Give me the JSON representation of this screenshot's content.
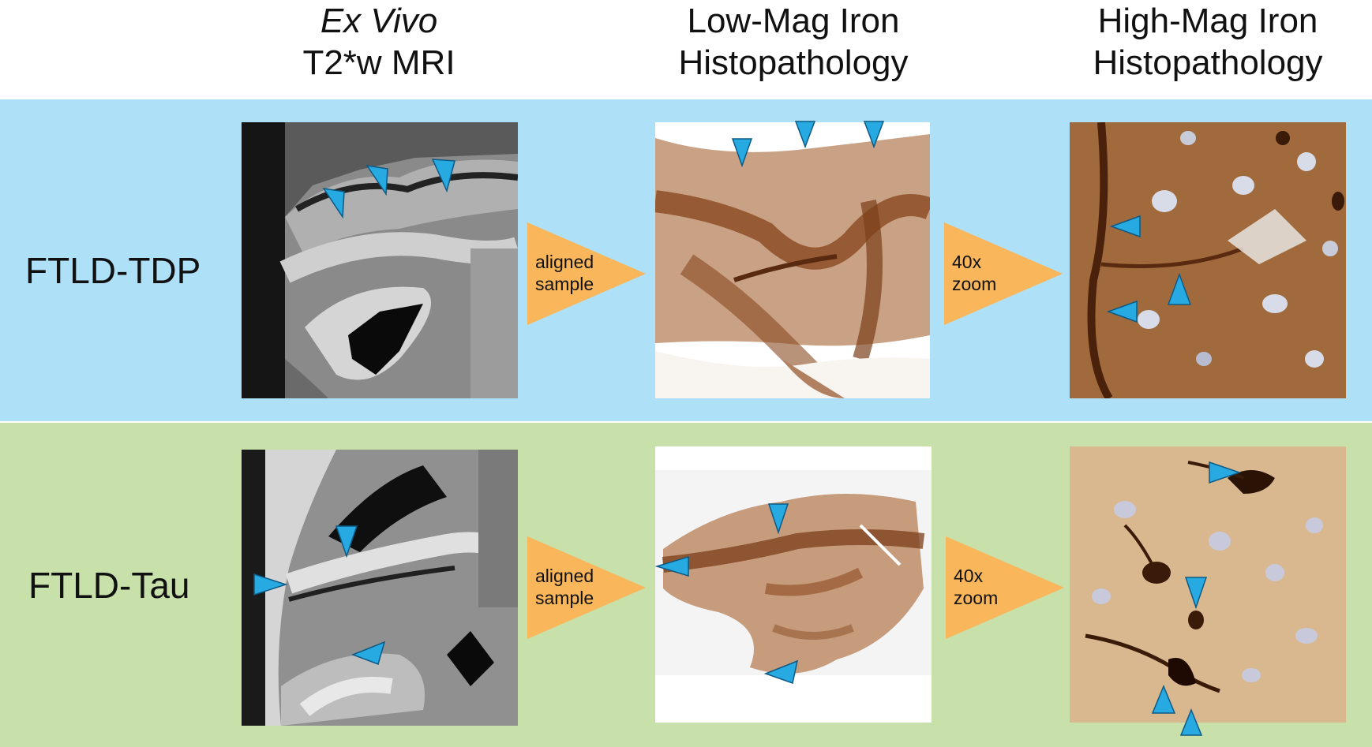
{
  "headers": {
    "mri": {
      "line1": "Ex Vivo",
      "line2": "T2*w MRI"
    },
    "low": {
      "line1": "Low-Mag Iron",
      "line2": "Histopathology"
    },
    "high": {
      "line1": "High-Mag Iron",
      "line2": "Histopathology"
    }
  },
  "rows": [
    {
      "label": "FTLD-TDP",
      "color": "#aee0f7",
      "arrow1": {
        "line1": "aligned",
        "line2": "sample"
      },
      "arrow2": {
        "line1": "40x",
        "line2": "zoom"
      }
    },
    {
      "label": "FTLD-Tau",
      "color": "#c8e0a9",
      "arrow1": {
        "line1": "aligned",
        "line2": "sample"
      },
      "arrow2": {
        "line1": "40x",
        "line2": "zoom"
      }
    }
  ],
  "colors": {
    "arrow_fill": "#f9b65a",
    "marker": "#27aae1",
    "stain": "#8a4a22",
    "tissue": "#c9a184"
  }
}
